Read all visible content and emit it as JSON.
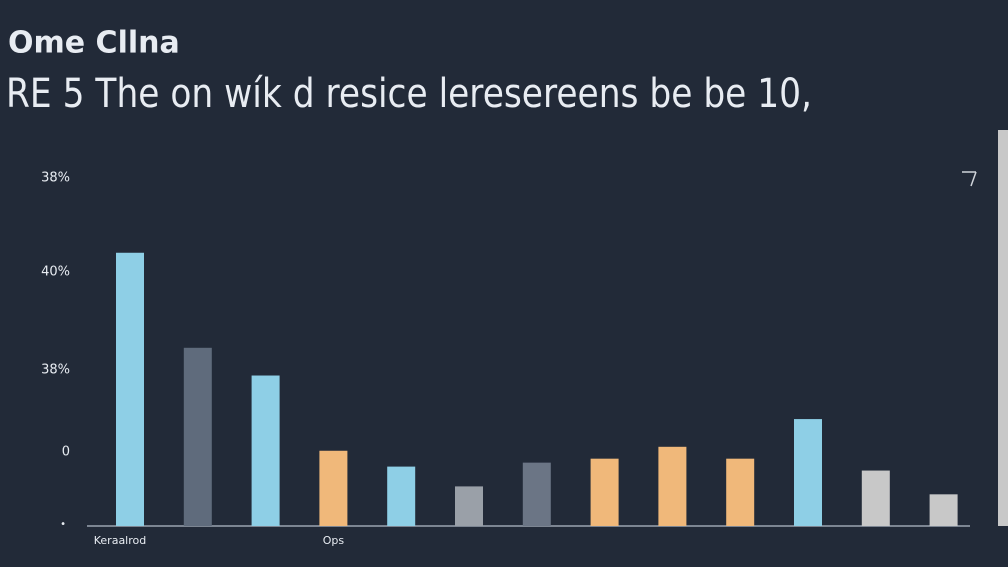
{
  "chart_data": {
    "type": "bar",
    "title": "Ome Cllna",
    "subtitle": "RE  5 The  on wík  d resice leresereens be be 10,",
    "y_labels": [
      "38%",
      "40%",
      "38%",
      "0",
      "•"
    ],
    "categories": [
      "Keraalrod",
      null,
      null,
      "Ops",
      null,
      null,
      null,
      null,
      null,
      null,
      null,
      null,
      null
    ],
    "values": [
      69,
      45,
      38,
      19,
      15,
      10,
      16,
      17,
      20,
      17,
      27,
      14,
      8
    ],
    "colors": [
      "#8ecfe6",
      "#5f6b7c",
      "#8ecfe6",
      "#f0b87a",
      "#8ecfe6",
      "#9aa0a8",
      "#6b7585",
      "#f0b87a",
      "#f0b87a",
      "#f0b87a",
      "#8ecfe6",
      "#c8c8c8",
      "#c8c8c8"
    ],
    "ylim": [
      0,
      100
    ]
  }
}
